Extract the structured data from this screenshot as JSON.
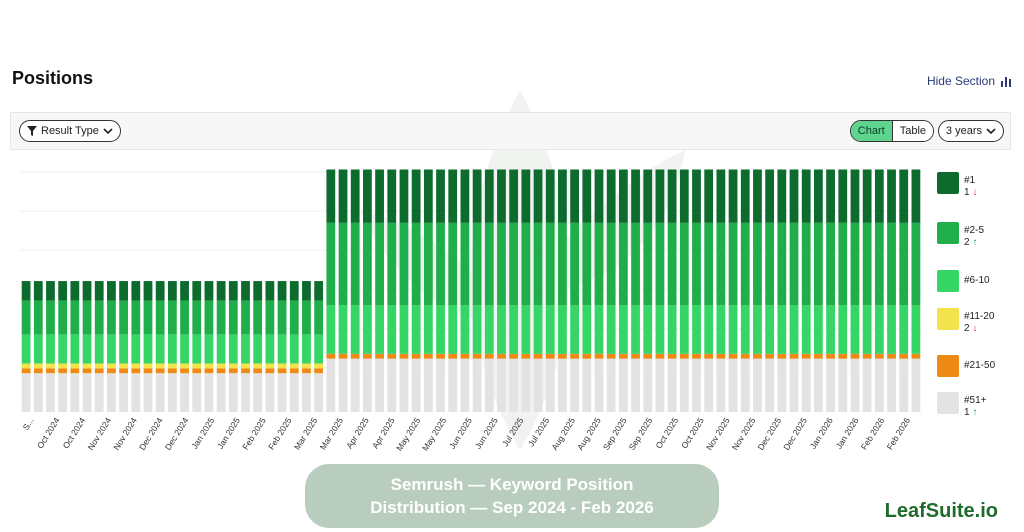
{
  "header": {
    "title": "Positions",
    "hide_section_label": "Hide Section"
  },
  "toolbar": {
    "result_type_label": "Result Type",
    "view_options": [
      "Chart",
      "Table"
    ],
    "active_view": "Chart",
    "range_label": "3 years"
  },
  "legend": [
    {
      "label": "#1",
      "count": "1",
      "trend": "down",
      "color": "#0e6b2e"
    },
    {
      "label": "#2-5",
      "count": "2",
      "trend": "up",
      "color": "#1fae49"
    },
    {
      "label": "#6-10",
      "count": "",
      "trend": "",
      "color": "#35d665"
    },
    {
      "label": "#11-20",
      "count": "2",
      "trend": "down",
      "color": "#f2e34d"
    },
    {
      "label": "#21-50",
      "count": "",
      "trend": "",
      "color": "#ef8a14"
    },
    {
      "label": "#51+",
      "count": "1",
      "trend": "up",
      "color": "#e3e3e3"
    }
  ],
  "caption": {
    "line1": "Semrush — Keyword Position",
    "line2": "Distribution — Sep 2024 - Feb 2026"
  },
  "brand": "LeafSuite.io",
  "chart_data": {
    "type": "bar",
    "stacked": true,
    "grid": true,
    "legend_position": "right",
    "x_tick_labels": [
      "S...",
      "Oct 2024",
      "Oct 2024",
      "Nov 2024",
      "Nov 2024",
      "Dec 2024",
      "Dec 2024",
      "Jan 2025",
      "Jan 2025",
      "Feb 2025",
      "Feb 2025",
      "Mar 2025",
      "Mar 2025",
      "Apr 2025",
      "Apr 2025",
      "May 2025",
      "May 2025",
      "Jun 2025",
      "Jun 2025",
      "Jul 2025",
      "Jul 2025",
      "Aug 2025",
      "Aug 2025",
      "Sep 2025",
      "Sep 2025",
      "Oct 2025",
      "Oct 2025",
      "Nov 2025",
      "Nov 2025",
      "Dec 2025",
      "Dec 2025",
      "Jan 2026",
      "Jan 2026",
      "Feb 2026",
      "Feb 2026"
    ],
    "num_bars": 74,
    "series_colors": {
      "#1": "#0e6b2e",
      "#2-5": "#1fae49",
      "#6-10": "#35d665",
      "#11-20": "#f2e34d",
      "#21-50": "#ef8a14",
      "#51+": "#e3e3e3"
    },
    "periods": [
      {
        "from_bar": 0,
        "to_bar": 24,
        "total": 27,
        "composition": {
          "#1": 4,
          "#2-5": 7,
          "#6-10": 6,
          "#11-20": 1,
          "#21-50": 1,
          "#51+": 8
        }
      },
      {
        "from_bar": 25,
        "to_bar": 73,
        "total": 50,
        "composition": {
          "#1": 11,
          "#2-5": 17,
          "#6-10": 10,
          "#11-20": 0,
          "#21-50": 1,
          "#51+": 11
        }
      }
    ]
  }
}
